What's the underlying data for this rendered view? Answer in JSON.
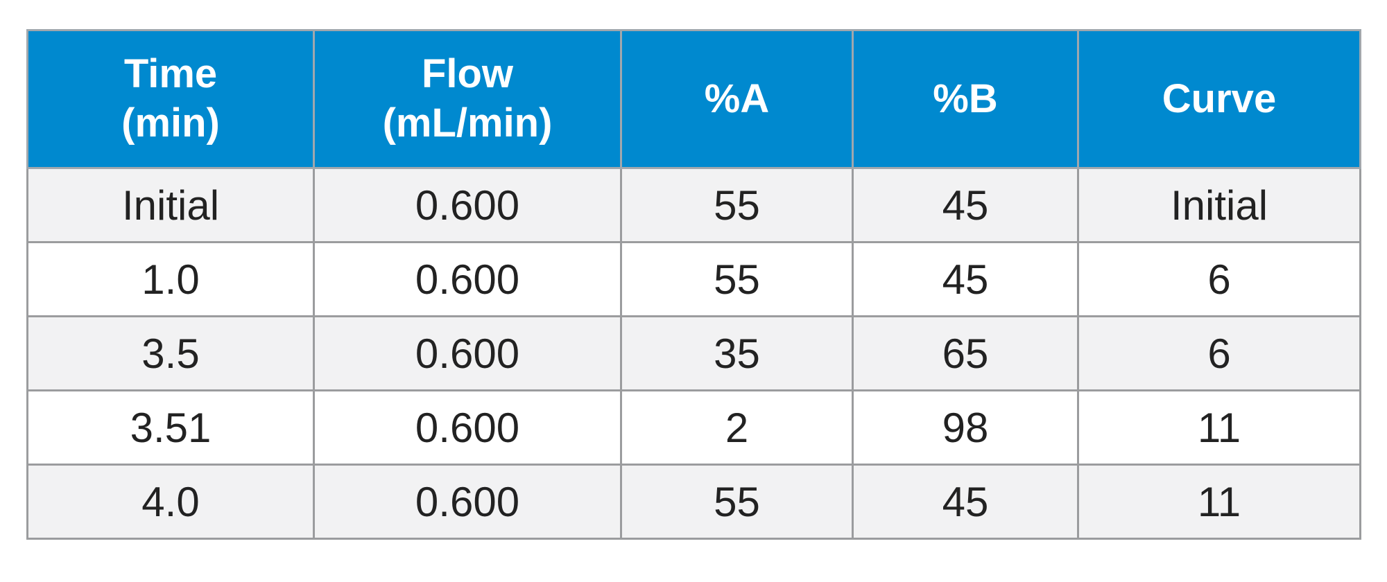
{
  "table": {
    "headers": [
      [
        "Time",
        "(min)"
      ],
      [
        "Flow",
        "(mL/min)"
      ],
      [
        "%A"
      ],
      [
        "%B"
      ],
      [
        "Curve"
      ]
    ],
    "rows": [
      [
        "Initial",
        "0.600",
        "55",
        "45",
        "Initial"
      ],
      [
        "1.0",
        "0.600",
        "55",
        "45",
        "6"
      ],
      [
        "3.5",
        "0.600",
        "35",
        "65",
        "6"
      ],
      [
        "3.51",
        "0.600",
        "2",
        "98",
        "11"
      ],
      [
        "4.0",
        "0.600",
        "55",
        "45",
        "11"
      ]
    ]
  },
  "colors": {
    "header_bg": "#0089cf",
    "header_text": "#ffffff",
    "row_alt_bg": "#f2f2f3",
    "row_bg": "#ffffff",
    "border": "#9b9c9e",
    "text": "#222222"
  }
}
